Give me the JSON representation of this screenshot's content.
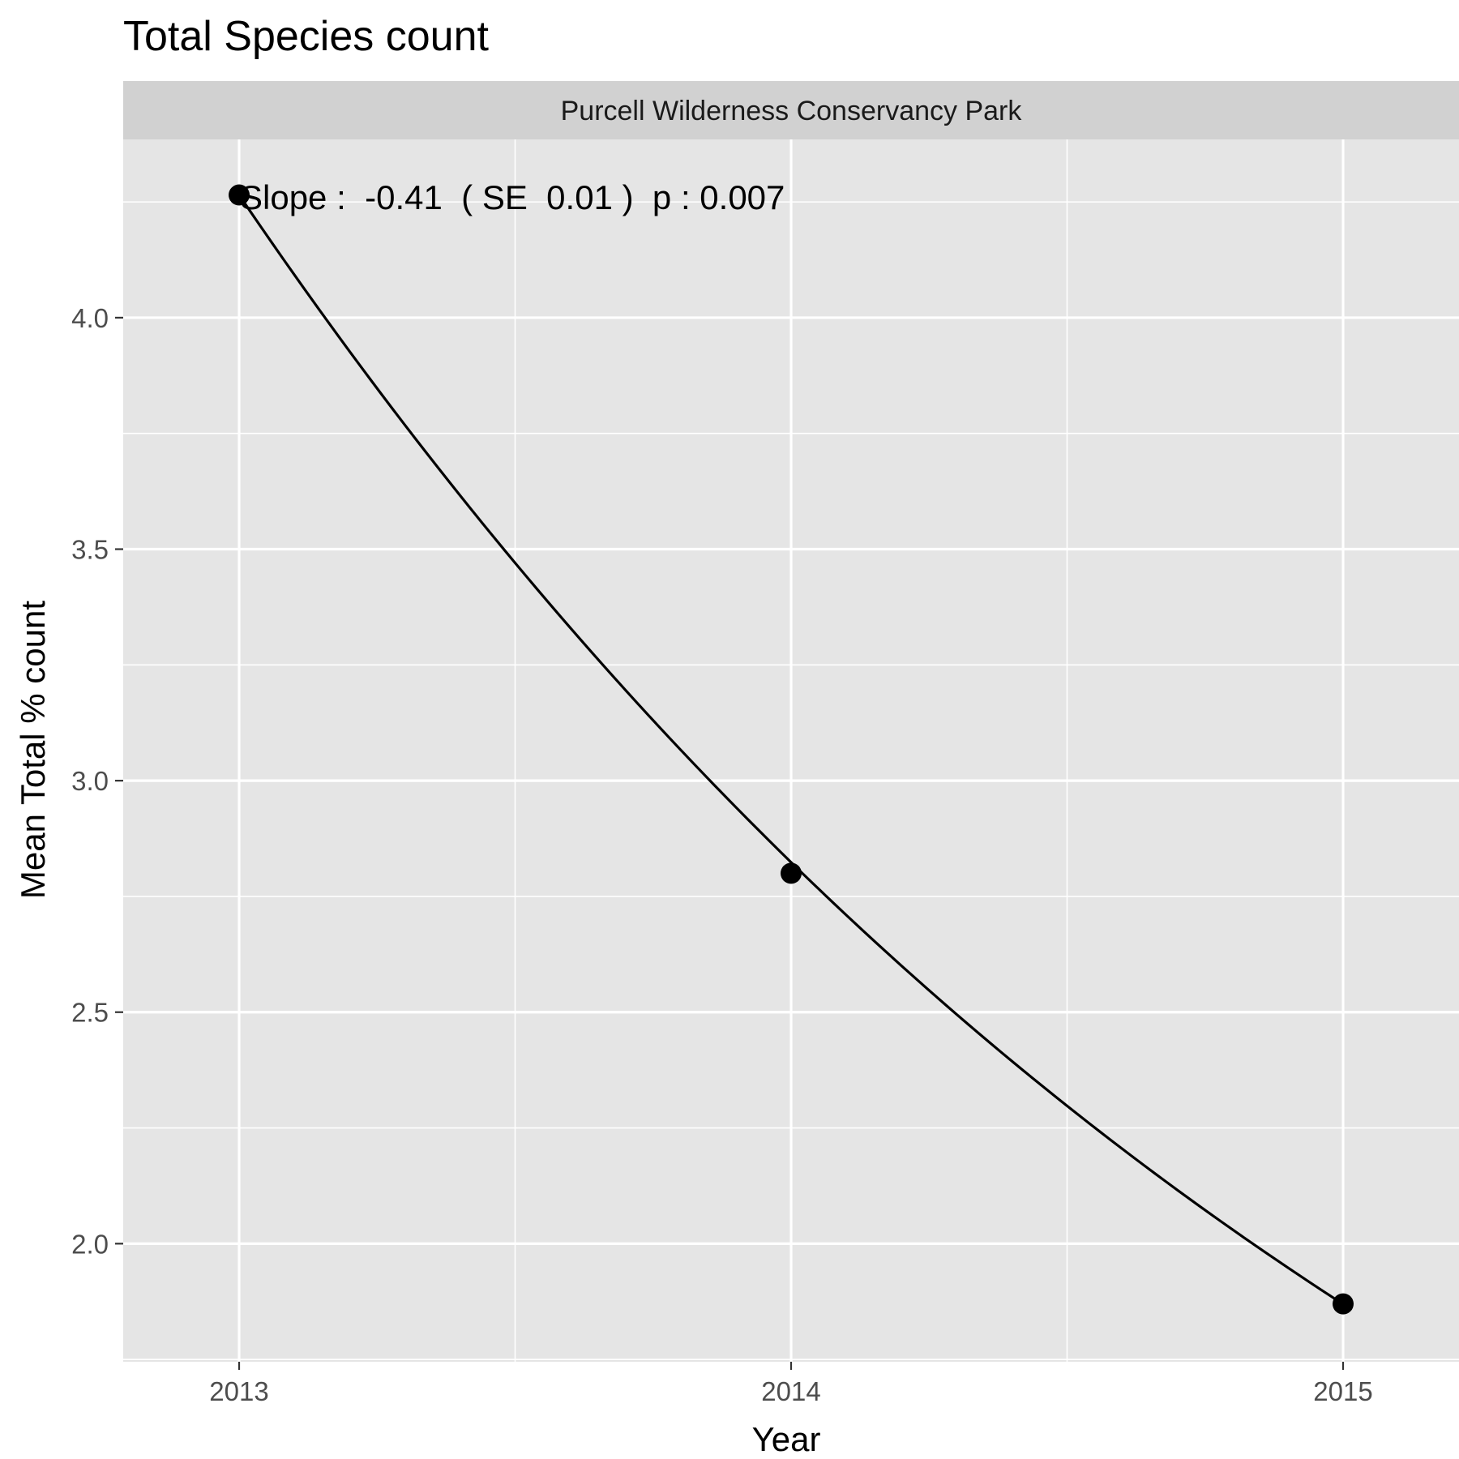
{
  "chart_data": {
    "type": "line",
    "title": "Total Species count",
    "facet_label": "Purcell Wilderness Conservancy Park",
    "xlabel": "Year",
    "ylabel": "Mean Total % count",
    "annotation": "Slope :  -0.41  ( SE  0.01 )  p : 0.007",
    "x_ticks": [
      "2013",
      "2014",
      "2015"
    ],
    "y_ticks": [
      "2.0",
      "2.5",
      "3.0",
      "3.5",
      "4.0"
    ],
    "xlim": [
      2012.79,
      2015.21
    ],
    "ylim": [
      1.745,
      4.385
    ],
    "points": [
      {
        "x": 2013,
        "y": 4.265
      },
      {
        "x": 2014,
        "y": 2.8
      },
      {
        "x": 2015,
        "y": 1.87
      }
    ],
    "fit": {
      "form": "exponential",
      "a": 4.265,
      "b": -0.4124
    },
    "grid": true,
    "legend": "none",
    "colors": {
      "panel_bg": "#e5e5e5",
      "strip_bg": "#d1d1d1",
      "grid": "#ffffff",
      "line": "#000000",
      "point": "#000000"
    }
  }
}
